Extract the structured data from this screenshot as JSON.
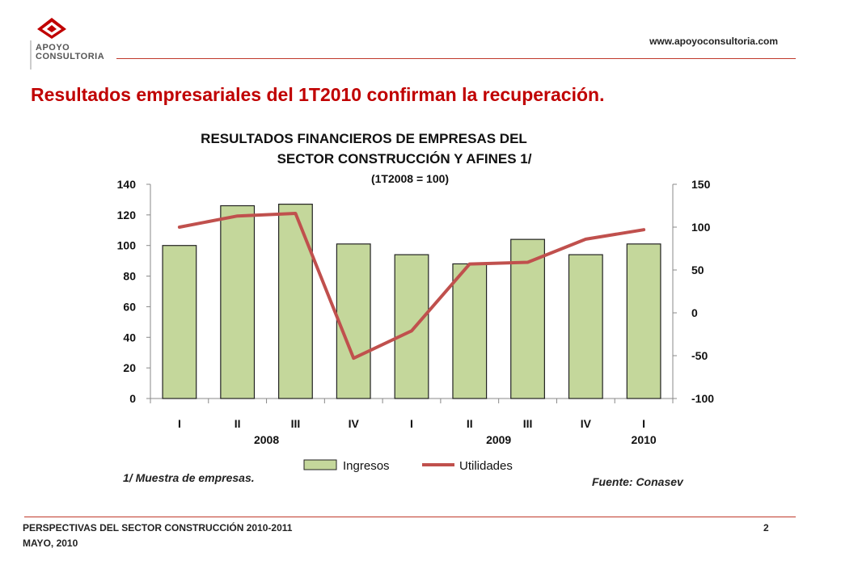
{
  "header": {
    "logo_line1": "APOYO",
    "logo_line2": "CONSULTORIA",
    "url": "www.apoyoconsultoria.com"
  },
  "headline": "Resultados empresariales del 1T2010 confirman la recuperación.",
  "colors": {
    "brand_red": "#c00000",
    "rule_red": "#c0392b",
    "bar_fill": "#c4d79b",
    "bar_stroke": "#222222",
    "line": "#c0504d"
  },
  "chart_data": {
    "type": "bar",
    "title_lines": [
      "RESULTADOS  FINANCIEROS  DE  EMPRESAS  DEL",
      "SECTOR  CONSTRUCCIÓN  Y  AFINES  1/"
    ],
    "subtitle": "(1T2008 = 100)",
    "categories": [
      "I",
      "II",
      "III",
      "IV",
      "I",
      "II",
      "III",
      "IV",
      "I"
    ],
    "year_labels": [
      {
        "label": "2008",
        "category_index": 1.5
      },
      {
        "label": "2009",
        "category_index": 5.5
      },
      {
        "label": "2010",
        "category_index": 8
      }
    ],
    "y_left": {
      "min": 0,
      "max": 140,
      "step": 20
    },
    "y_right": {
      "min": -100,
      "max": 150,
      "step": 50
    },
    "series": [
      {
        "name": "Ingresos",
        "type": "bar",
        "axis": "left",
        "values": [
          100,
          126,
          127,
          101,
          94,
          88,
          104,
          94,
          101
        ]
      },
      {
        "name": "Utilidades",
        "type": "line",
        "axis": "right",
        "values": [
          100,
          113,
          116,
          -53,
          -21,
          57,
          59,
          86,
          97
        ]
      }
    ],
    "legend_position": "bottom",
    "grid": false
  },
  "footnote": "1/ Muestra de empresas.",
  "source": "Fuente: Conasev",
  "footer": {
    "line1": "PERSPECTIVAS DEL SECTOR CONSTRUCCIÓN 2010-2011",
    "line2": "MAYO, 2010",
    "page": "2"
  }
}
